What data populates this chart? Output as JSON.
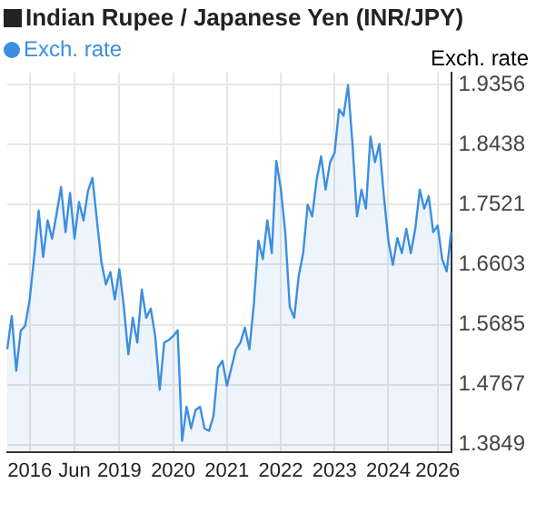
{
  "chart_data": {
    "type": "area",
    "title": "Indian Rupee / Japanese Yen (INR/JPY)",
    "ylabel": "Exch. rate",
    "categories": [
      null,
      null,
      null,
      null,
      null,
      "2016",
      null,
      null,
      null,
      null,
      null,
      null,
      null,
      null,
      null,
      "Jun",
      null,
      null,
      null,
      null,
      null,
      null,
      null,
      null,
      null,
      "2019",
      null,
      null,
      null,
      null,
      null,
      null,
      null,
      null,
      null,
      null,
      null,
      "2020",
      null,
      null,
      null,
      null,
      null,
      null,
      null,
      null,
      null,
      null,
      null,
      "2021",
      null,
      null,
      null,
      null,
      null,
      null,
      null,
      null,
      null,
      null,
      null,
      "2022",
      null,
      null,
      null,
      null,
      null,
      null,
      null,
      null,
      null,
      null,
      null,
      "2023",
      null,
      null,
      null,
      null,
      null,
      null,
      null,
      null,
      null,
      null,
      null,
      "2024",
      null,
      null,
      null,
      null,
      null,
      null,
      null,
      null,
      null,
      null,
      "2026",
      null,
      null,
      null
    ],
    "series": [
      {
        "name": "Exch. rate",
        "color": "#3d8ee0",
        "values": [
          1.531,
          1.582,
          1.498,
          1.559,
          1.567,
          1.607,
          1.672,
          1.743,
          1.672,
          1.728,
          1.7,
          1.738,
          1.779,
          1.71,
          1.77,
          1.7,
          1.756,
          1.728,
          1.773,
          1.793,
          1.728,
          1.664,
          1.63,
          1.649,
          1.607,
          1.653,
          1.596,
          1.523,
          1.579,
          1.541,
          1.622,
          1.579,
          1.593,
          1.551,
          1.469,
          1.541,
          1.545,
          1.551,
          1.56,
          1.391,
          1.443,
          1.41,
          1.438,
          1.443,
          1.41,
          1.406,
          1.429,
          1.503,
          1.513,
          1.475,
          1.503,
          1.531,
          1.541,
          1.564,
          1.531,
          1.6,
          1.697,
          1.669,
          1.728,
          1.678,
          1.819,
          1.777,
          1.71,
          1.596,
          1.579,
          1.643,
          1.678,
          1.752,
          1.734,
          1.79,
          1.826,
          1.775,
          1.817,
          1.831,
          1.898,
          1.888,
          1.935,
          1.845,
          1.734,
          1.775,
          1.746,
          1.856,
          1.817,
          1.845,
          1.765,
          1.697,
          1.66,
          1.701,
          1.678,
          1.715,
          1.678,
          1.715,
          1.775,
          1.746,
          1.765,
          1.71,
          1.72,
          1.669,
          1.65,
          1.71
        ]
      }
    ],
    "ylim": [
      1.374,
      1.954
    ],
    "yticks": [
      1.9356,
      1.8438,
      1.7521,
      1.6603,
      1.5685,
      1.4767,
      1.3849
    ],
    "grid": true,
    "legend": "top left",
    "marker": "none"
  }
}
